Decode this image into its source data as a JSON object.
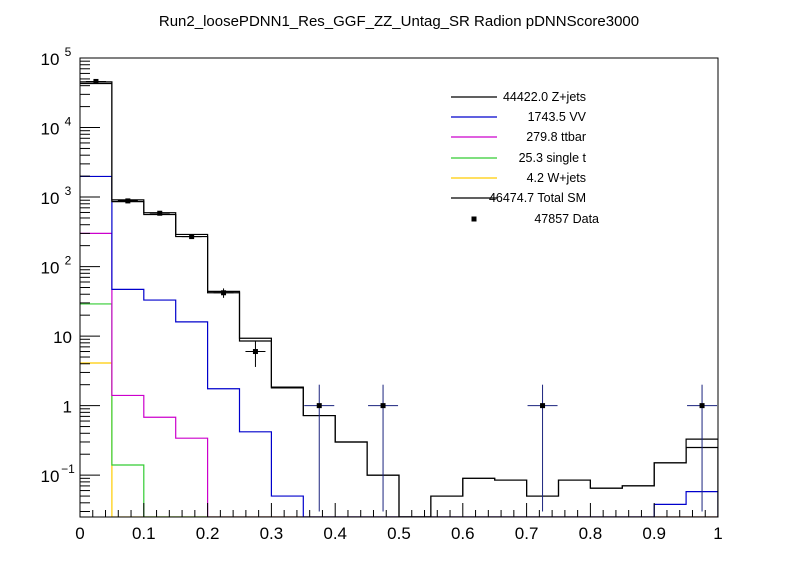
{
  "chart_data": {
    "type": "line",
    "title": "Run2_loosePDNN1_Res_GGF_ZZ_Untag_SR Radion  pDNNScore3000",
    "xlabel": "",
    "ylabel": "",
    "xlim": [
      0,
      1
    ],
    "ylim": [
      0.025,
      100000
    ],
    "yscale": "log",
    "grid": false,
    "legend_position": "top-right",
    "bin_edges": [
      0,
      0.05,
      0.1,
      0.15,
      0.2,
      0.25,
      0.3,
      0.35,
      0.4,
      0.45,
      0.5,
      0.55,
      0.6,
      0.65,
      0.7,
      0.75,
      0.8,
      0.85,
      0.9,
      0.95,
      1.0
    ],
    "x_ticks": [
      {
        "value": 0,
        "label": "0"
      },
      {
        "value": 0.1,
        "label": "0.1"
      },
      {
        "value": 0.2,
        "label": "0.2"
      },
      {
        "value": 0.3,
        "label": "0.3"
      },
      {
        "value": 0.4,
        "label": "0.4"
      },
      {
        "value": 0.5,
        "label": "0.5"
      },
      {
        "value": 0.6,
        "label": "0.6"
      },
      {
        "value": 0.7,
        "label": "0.7"
      },
      {
        "value": 0.8,
        "label": "0.8"
      },
      {
        "value": 0.9,
        "label": "0.9"
      },
      {
        "value": 1,
        "label": "1"
      }
    ],
    "y_ticks": [
      {
        "value": 0.1,
        "base": "10",
        "exp": "−1"
      },
      {
        "value": 1,
        "base": "1",
        "exp": ""
      },
      {
        "value": 10,
        "base": "10",
        "exp": ""
      },
      {
        "value": 100,
        "base": "10",
        "exp": "2"
      },
      {
        "value": 1000,
        "base": "10",
        "exp": "3"
      },
      {
        "value": 10000,
        "base": "10",
        "exp": "4"
      },
      {
        "value": 100000,
        "base": "10",
        "exp": "5"
      }
    ],
    "series": [
      {
        "name": "Z+jets",
        "legend": "44422.0 Z+jets",
        "color": "#000000",
        "values": [
          43000,
          860,
          560,
          270,
          42,
          8.5,
          1.8,
          0.72,
          0.3,
          0.1,
          0.01,
          0.05,
          0.09,
          0.085,
          0.05,
          0.085,
          0.065,
          0.07,
          0.15,
          0.25
        ]
      },
      {
        "name": "VV",
        "legend": "1743.5 VV",
        "color": "#0000cc",
        "values": [
          1980,
          47,
          33,
          16,
          1.75,
          0.42,
          0.05,
          0,
          0,
          0,
          0,
          0,
          0,
          0,
          0,
          0,
          0,
          0,
          0.038,
          0.058
        ]
      },
      {
        "name": "ttbar",
        "legend": "279.8 ttbar",
        "color": "#cc00cc",
        "values": [
          300,
          1.4,
          0.68,
          0.34,
          0,
          0,
          0,
          0,
          0,
          0,
          0,
          0,
          0,
          0,
          0,
          0,
          0,
          0,
          0,
          0
        ]
      },
      {
        "name": "single t",
        "legend": "25.3 single t",
        "color": "#33cc33",
        "values": [
          29,
          0.14,
          0,
          0,
          0,
          0,
          0,
          0,
          0,
          0,
          0,
          0,
          0,
          0,
          0,
          0,
          0,
          0,
          0,
          0
        ]
      },
      {
        "name": "W+jets",
        "legend": "4.2 W+jets",
        "color": "#ffcc00",
        "values": [
          4.1,
          0,
          0,
          0,
          0,
          0,
          0,
          0,
          0,
          0,
          0,
          0,
          0,
          0,
          0,
          0,
          0,
          0,
          0,
          0
        ]
      },
      {
        "name": "Total SM",
        "legend": "46474.7 Total SM",
        "color": "#000000",
        "values": [
          45300,
          910,
          595,
          290,
          44,
          9.3,
          1.85,
          0.72,
          0.3,
          0.1,
          0.01,
          0.05,
          0.09,
          0.085,
          0.05,
          0.085,
          0.065,
          0.07,
          0.15,
          0.33
        ]
      }
    ],
    "data": {
      "name": "Data",
      "legend": "47857 Data",
      "color": "#000000",
      "points": [
        {
          "x": 0.025,
          "y": 46000,
          "err_lo": 214,
          "err_hi": 214
        },
        {
          "x": 0.075,
          "y": 880,
          "err_lo": 30,
          "err_hi": 30
        },
        {
          "x": 0.125,
          "y": 585,
          "err_lo": 24,
          "err_hi": 24
        },
        {
          "x": 0.175,
          "y": 270,
          "err_lo": 16,
          "err_hi": 16
        },
        {
          "x": 0.225,
          "y": 42,
          "err_lo": 6.5,
          "err_hi": 6.5
        },
        {
          "x": 0.275,
          "y": 6,
          "err_lo": 2.4,
          "err_hi": 2.4
        },
        {
          "x": 0.375,
          "y": 1,
          "err_lo": 0.97,
          "err_hi": 1.0
        },
        {
          "x": 0.475,
          "y": 1,
          "err_lo": 0.97,
          "err_hi": 1.0
        },
        {
          "x": 0.725,
          "y": 1,
          "err_lo": 0.97,
          "err_hi": 1.0
        },
        {
          "x": 0.975,
          "y": 1,
          "err_lo": 0.97,
          "err_hi": 1.0
        }
      ]
    }
  }
}
